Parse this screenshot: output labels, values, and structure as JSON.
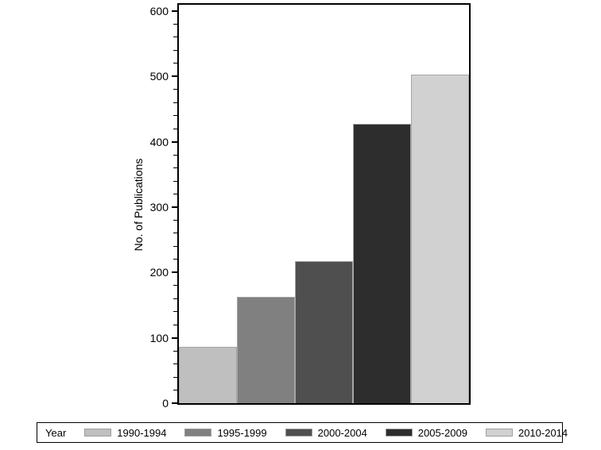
{
  "chart_data": {
    "type": "bar",
    "title": "",
    "xlabel": "",
    "ylabel": "No. of Publications",
    "ylim": [
      0,
      600
    ],
    "y_major_ticks": [
      0,
      100,
      200,
      300,
      400,
      500,
      600
    ],
    "y_minor_step": 20,
    "grid": "off",
    "legend_position": "bottom",
    "legend_title": "Year",
    "categories": [
      "1990-1994",
      "1995-1999",
      "2000-2004",
      "2005-2009",
      "2010-2014"
    ],
    "values": [
      86,
      163,
      217,
      427,
      503
    ],
    "bar_colors": [
      "#bfbfbf",
      "#808080",
      "#4f4f4f",
      "#2d2d2d",
      "#d1d1d1"
    ],
    "bar_border_color": "#a6a6a6",
    "frame_color": "#000000",
    "background_color": "#ffffff"
  }
}
